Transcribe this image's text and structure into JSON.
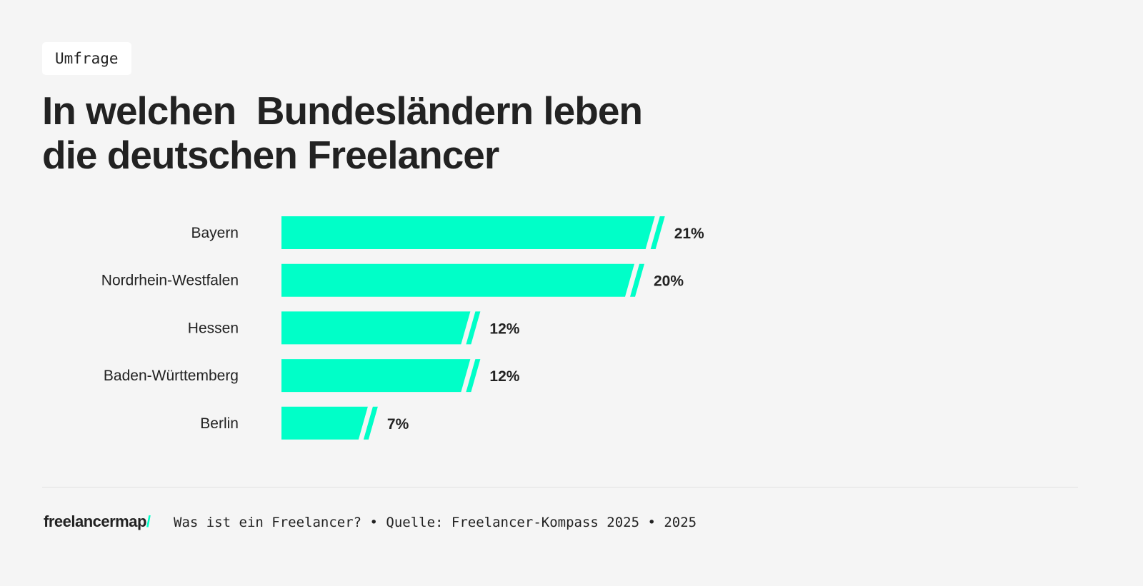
{
  "tag": "Umfrage",
  "title": "In welchen  Bundesländern leben\ndie deutschen Freelancer",
  "chart_data": {
    "type": "bar",
    "orientation": "horizontal",
    "categories": [
      "Bayern",
      "Nordrhein-Westfalen",
      "Hessen",
      "Baden-Württemberg",
      "Berlin"
    ],
    "values": [
      21,
      20,
      12,
      12,
      7
    ],
    "value_labels": [
      "21%",
      "20%",
      "12%",
      "12%",
      "7%"
    ],
    "unit": "%",
    "bar_color": "#00ffc8",
    "grid": false
  },
  "footer": {
    "logo": "freelancermap",
    "logo_slash": "/",
    "text": "Was ist ein Freelancer? • Quelle: Freelancer-Kompass 2025 • 2025"
  }
}
